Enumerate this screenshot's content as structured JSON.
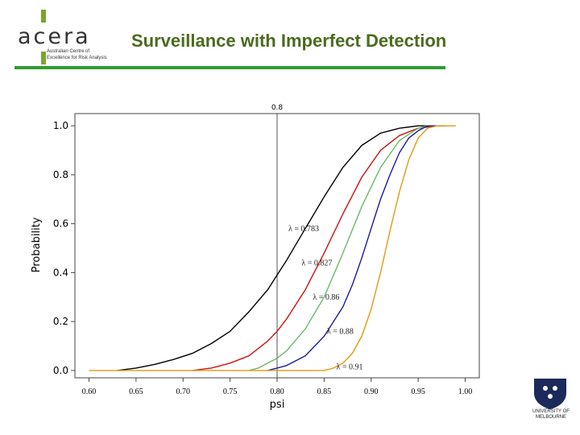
{
  "header": {
    "title": "Surveillance with Imperfect Detection",
    "title_color": "#4a6b1e",
    "rule_color": "#2e9e2e"
  },
  "logo": {
    "word": "acera",
    "tagline": [
      "Australian Centre of",
      "Excellence for Risk Analysis"
    ],
    "accent_color": "#7aa52c"
  },
  "footer_logo": {
    "text": [
      "UNIVERSITY OF",
      "MELBOURNE"
    ]
  },
  "chart_data": {
    "type": "line",
    "title": "",
    "xlabel": "psi",
    "ylabel": "Probability",
    "xlim": [
      0.585,
      1.015
    ],
    "ylim": [
      -0.03,
      1.05
    ],
    "xticks": [
      0.6,
      0.65,
      0.7,
      0.75,
      0.8,
      0.85,
      0.9,
      0.95,
      1.0
    ],
    "xtick_labels": [
      "0.60",
      "0.65",
      "0.70",
      "0.75",
      "0.80",
      "0.85",
      "0.90",
      "0.95",
      "1.00"
    ],
    "yticks": [
      0.0,
      0.2,
      0.4,
      0.6,
      0.8,
      1.0
    ],
    "ytick_labels": [
      "0.0",
      "0.2",
      "0.4",
      "0.6",
      "0.8",
      "1.0"
    ],
    "reference_line": {
      "x": 0.8,
      "label": "0.8"
    },
    "series": [
      {
        "name": "λ = 0.783",
        "color": "#000000",
        "x": [
          0.63,
          0.65,
          0.67,
          0.69,
          0.71,
          0.73,
          0.75,
          0.77,
          0.79,
          0.8,
          0.81,
          0.83,
          0.85,
          0.87,
          0.89,
          0.91,
          0.93,
          0.95,
          0.97
        ],
        "y": [
          0.0,
          0.01,
          0.025,
          0.045,
          0.07,
          0.11,
          0.16,
          0.24,
          0.33,
          0.39,
          0.45,
          0.58,
          0.71,
          0.83,
          0.92,
          0.97,
          0.99,
          1.0,
          1.0
        ]
      },
      {
        "name": "λ = 0.827",
        "color": "#cc1111",
        "x": [
          0.71,
          0.73,
          0.75,
          0.77,
          0.79,
          0.8,
          0.81,
          0.83,
          0.85,
          0.87,
          0.89,
          0.91,
          0.93,
          0.95,
          0.97
        ],
        "y": [
          0.0,
          0.01,
          0.03,
          0.06,
          0.12,
          0.16,
          0.21,
          0.33,
          0.48,
          0.64,
          0.79,
          0.9,
          0.96,
          0.99,
          1.0
        ]
      },
      {
        "name": "λ = 0.86",
        "color": "#66bb66",
        "x": [
          0.77,
          0.78,
          0.79,
          0.8,
          0.81,
          0.83,
          0.85,
          0.87,
          0.89,
          0.91,
          0.93,
          0.95,
          0.96,
          0.98
        ],
        "y": [
          0.0,
          0.01,
          0.03,
          0.05,
          0.08,
          0.17,
          0.3,
          0.48,
          0.67,
          0.83,
          0.94,
          0.99,
          1.0,
          1.0
        ]
      },
      {
        "name": "λ = 0.88",
        "color": "#1a1aa0",
        "x": [
          0.79,
          0.8,
          0.81,
          0.83,
          0.85,
          0.87,
          0.88,
          0.89,
          0.9,
          0.91,
          0.92,
          0.93,
          0.94,
          0.95,
          0.96,
          0.98
        ],
        "y": [
          0.0,
          0.01,
          0.02,
          0.06,
          0.14,
          0.26,
          0.35,
          0.46,
          0.58,
          0.7,
          0.8,
          0.89,
          0.95,
          0.98,
          1.0,
          1.0
        ]
      },
      {
        "name": "λ = 0.91",
        "color": "#e09a10",
        "x": [
          0.6,
          0.85,
          0.86,
          0.87,
          0.88,
          0.89,
          0.9,
          0.91,
          0.92,
          0.93,
          0.94,
          0.95,
          0.96,
          0.97,
          0.99
        ],
        "y": [
          0.0,
          0.0,
          0.01,
          0.03,
          0.07,
          0.14,
          0.25,
          0.4,
          0.57,
          0.73,
          0.86,
          0.95,
          0.99,
          1.0,
          1.0
        ]
      }
    ],
    "annotations": [
      {
        "text": "λ = 0.783",
        "x": 0.812,
        "y": 0.57
      },
      {
        "text": "λ = 0.827",
        "x": 0.826,
        "y": 0.43
      },
      {
        "text": "λ = 0.86",
        "x": 0.838,
        "y": 0.29
      },
      {
        "text": "λ = 0.88",
        "x": 0.853,
        "y": 0.15
      },
      {
        "text": "λ = 0.91",
        "x": 0.863,
        "y": 0.005
      }
    ]
  }
}
